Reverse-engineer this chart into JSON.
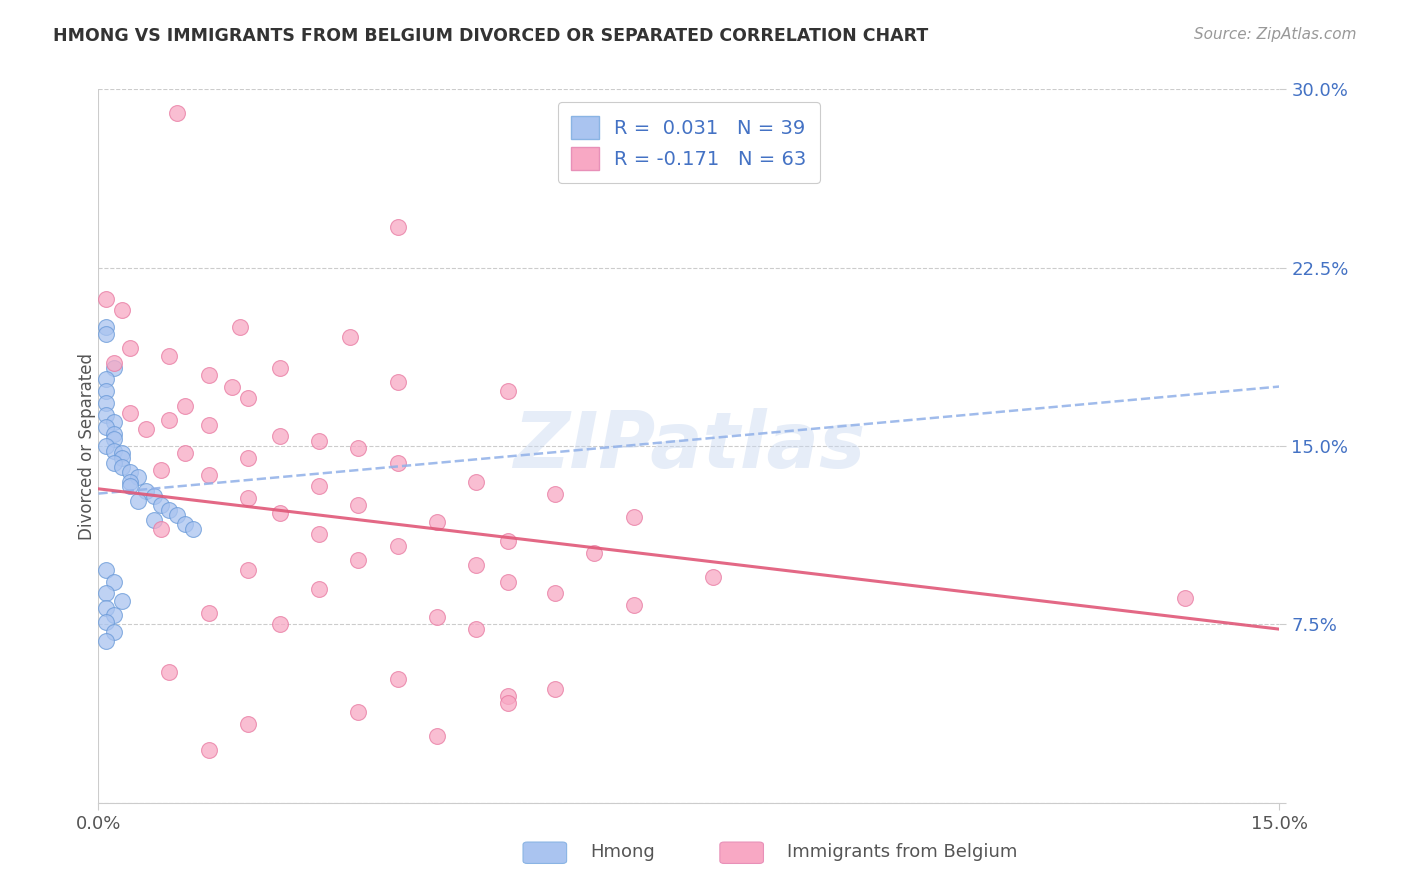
{
  "title": "HMONG VS IMMIGRANTS FROM BELGIUM DIVORCED OR SEPARATED CORRELATION CHART",
  "source": "Source: ZipAtlas.com",
  "ylabel": "Divorced or Separated",
  "y_ticks": [
    0.0,
    0.075,
    0.15,
    0.225,
    0.3
  ],
  "y_tick_labels": [
    "",
    "7.5%",
    "15.0%",
    "22.5%",
    "30.0%"
  ],
  "x_min": 0.0,
  "x_max": 0.15,
  "y_min": 0.0,
  "y_max": 0.3,
  "legend_label1": "R =  0.031   N = 39",
  "legend_label2": "R = -0.171   N = 63",
  "color_hmong": "#aac4f0",
  "color_belgium": "#f8a8c4",
  "trendline_color_hmong": "#90b0e8",
  "trendline_color_belgium": "#e05878",
  "watermark": "ZIPatlas",
  "hmong_points": [
    [
      0.001,
      0.2
    ],
    [
      0.001,
      0.197
    ],
    [
      0.002,
      0.183
    ],
    [
      0.001,
      0.178
    ],
    [
      0.001,
      0.173
    ],
    [
      0.001,
      0.168
    ],
    [
      0.001,
      0.163
    ],
    [
      0.002,
      0.16
    ],
    [
      0.001,
      0.158
    ],
    [
      0.002,
      0.155
    ],
    [
      0.002,
      0.153
    ],
    [
      0.001,
      0.15
    ],
    [
      0.002,
      0.148
    ],
    [
      0.003,
      0.147
    ],
    [
      0.003,
      0.145
    ],
    [
      0.002,
      0.143
    ],
    [
      0.003,
      0.141
    ],
    [
      0.004,
      0.139
    ],
    [
      0.005,
      0.137
    ],
    [
      0.004,
      0.135
    ],
    [
      0.004,
      0.133
    ],
    [
      0.006,
      0.131
    ],
    [
      0.007,
      0.129
    ],
    [
      0.005,
      0.127
    ],
    [
      0.008,
      0.125
    ],
    [
      0.009,
      0.123
    ],
    [
      0.01,
      0.121
    ],
    [
      0.007,
      0.119
    ],
    [
      0.011,
      0.117
    ],
    [
      0.012,
      0.115
    ],
    [
      0.001,
      0.098
    ],
    [
      0.002,
      0.093
    ],
    [
      0.001,
      0.088
    ],
    [
      0.003,
      0.085
    ],
    [
      0.001,
      0.082
    ],
    [
      0.002,
      0.079
    ],
    [
      0.001,
      0.076
    ],
    [
      0.002,
      0.072
    ],
    [
      0.001,
      0.068
    ]
  ],
  "belgium_points": [
    [
      0.01,
      0.29
    ],
    [
      0.038,
      0.242
    ],
    [
      0.001,
      0.212
    ],
    [
      0.003,
      0.207
    ],
    [
      0.018,
      0.2
    ],
    [
      0.032,
      0.196
    ],
    [
      0.004,
      0.191
    ],
    [
      0.009,
      0.188
    ],
    [
      0.002,
      0.185
    ],
    [
      0.023,
      0.183
    ],
    [
      0.014,
      0.18
    ],
    [
      0.038,
      0.177
    ],
    [
      0.017,
      0.175
    ],
    [
      0.052,
      0.173
    ],
    [
      0.019,
      0.17
    ],
    [
      0.011,
      0.167
    ],
    [
      0.004,
      0.164
    ],
    [
      0.009,
      0.161
    ],
    [
      0.014,
      0.159
    ],
    [
      0.006,
      0.157
    ],
    [
      0.023,
      0.154
    ],
    [
      0.028,
      0.152
    ],
    [
      0.033,
      0.149
    ],
    [
      0.011,
      0.147
    ],
    [
      0.019,
      0.145
    ],
    [
      0.038,
      0.143
    ],
    [
      0.008,
      0.14
    ],
    [
      0.014,
      0.138
    ],
    [
      0.048,
      0.135
    ],
    [
      0.028,
      0.133
    ],
    [
      0.058,
      0.13
    ],
    [
      0.019,
      0.128
    ],
    [
      0.033,
      0.125
    ],
    [
      0.023,
      0.122
    ],
    [
      0.068,
      0.12
    ],
    [
      0.043,
      0.118
    ],
    [
      0.008,
      0.115
    ],
    [
      0.028,
      0.113
    ],
    [
      0.052,
      0.11
    ],
    [
      0.038,
      0.108
    ],
    [
      0.063,
      0.105
    ],
    [
      0.033,
      0.102
    ],
    [
      0.048,
      0.1
    ],
    [
      0.019,
      0.098
    ],
    [
      0.078,
      0.095
    ],
    [
      0.052,
      0.093
    ],
    [
      0.028,
      0.09
    ],
    [
      0.058,
      0.088
    ],
    [
      0.138,
      0.086
    ],
    [
      0.068,
      0.083
    ],
    [
      0.014,
      0.08
    ],
    [
      0.043,
      0.078
    ],
    [
      0.023,
      0.075
    ],
    [
      0.048,
      0.073
    ],
    [
      0.009,
      0.055
    ],
    [
      0.038,
      0.052
    ],
    [
      0.058,
      0.048
    ],
    [
      0.052,
      0.045
    ],
    [
      0.052,
      0.042
    ],
    [
      0.033,
      0.038
    ],
    [
      0.019,
      0.033
    ],
    [
      0.043,
      0.028
    ],
    [
      0.014,
      0.022
    ]
  ],
  "hmong_trendline": [
    [
      0.0,
      0.13
    ],
    [
      0.15,
      0.175
    ]
  ],
  "belgium_trendline": [
    [
      0.0,
      0.132
    ],
    [
      0.15,
      0.073
    ]
  ]
}
